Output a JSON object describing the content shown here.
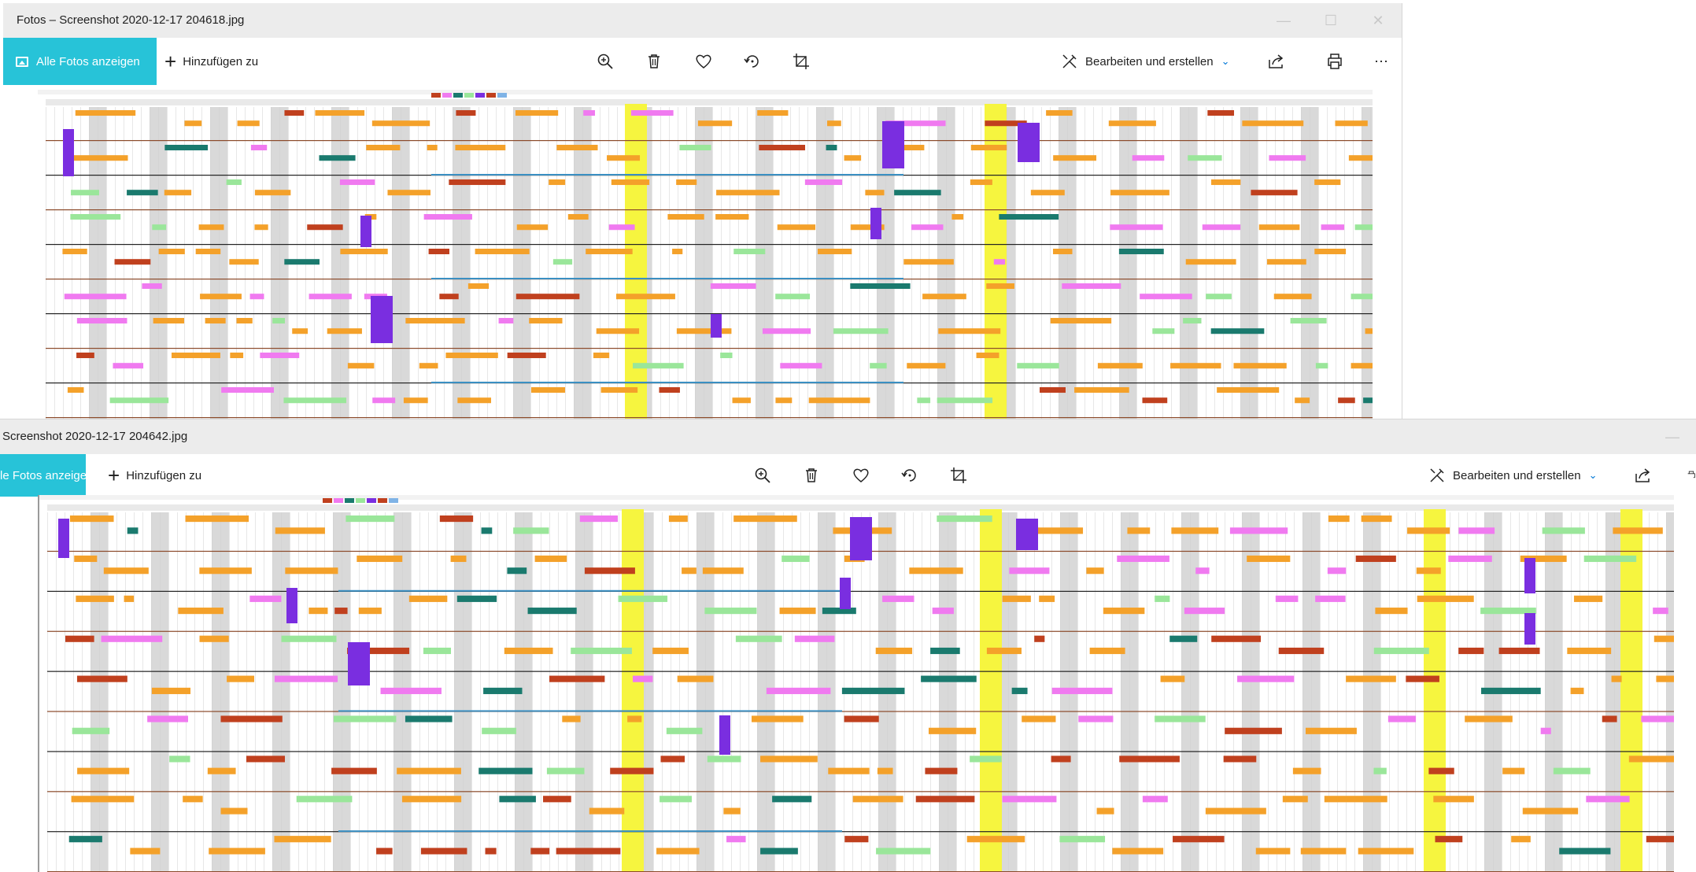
{
  "colors": {
    "accent": "#27c3d8",
    "chevron": "#0078d7",
    "orange": "#f4a12a",
    "darkred": "#c0401e",
    "green": "#9ae69a",
    "teal": "#1a7a6e",
    "purple": "#7a2ee0",
    "magenta": "#f07af0",
    "yellow": "#f6f53f",
    "blue": "#3a8fc2",
    "brown": "#8b4a2a",
    "grey_column": "#d9d9d9"
  },
  "windows": [
    {
      "title": "Fotos – Screenshot 2020-12-17 204618.jpg",
      "toolbar": {
        "all_photos_label": "Alle Fotos anzeigen",
        "add_to_label": "Hinzufügen zu",
        "edit_create_label": "Bearbeiten und erstellen",
        "more_label": "⋯"
      }
    },
    {
      "title": "Screenshot 2020-12-17 204642.jpg",
      "toolbar": {
        "all_photos_label": "le Fotos anzeigen",
        "add_to_label": "Hinzufügen zu",
        "edit_create_label": "Bearbeiten und erstellen"
      }
    }
  ]
}
